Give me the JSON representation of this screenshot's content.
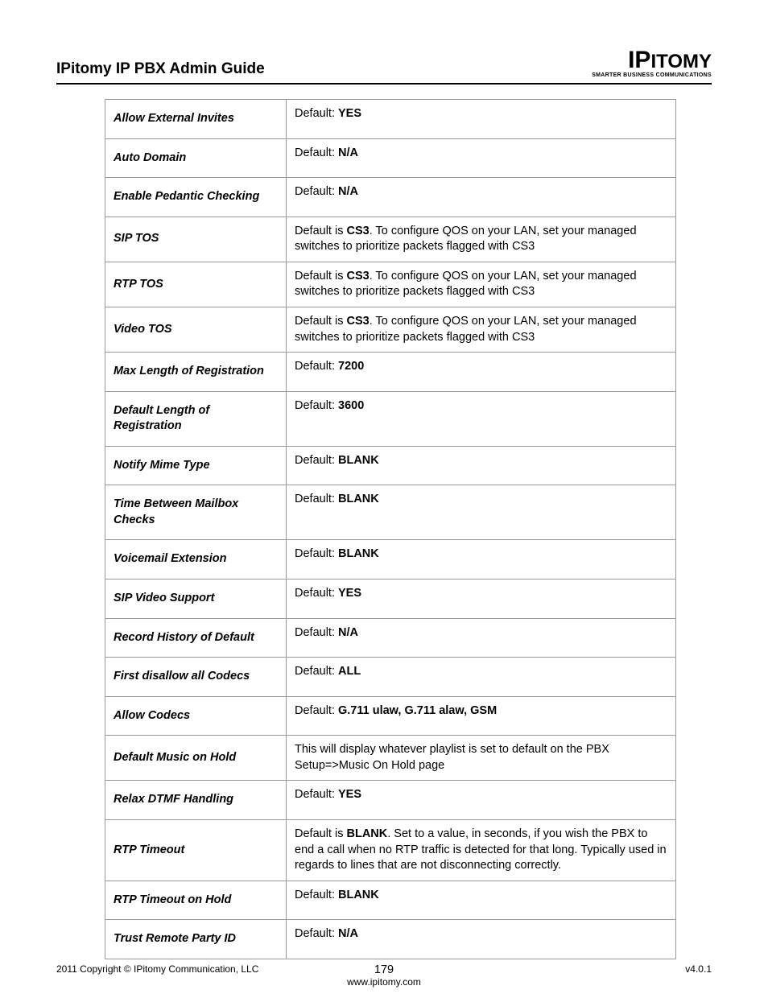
{
  "header": {
    "title": "IPitomy IP PBX Admin Guide",
    "logo_brand_ip": "IP",
    "logo_brand_rest": "ITOMY",
    "logo_tagline": "SMARTER BUSINESS COMMUNICATIONS"
  },
  "rows": [
    {
      "label": "Allow External Invites",
      "pre": "Default: ",
      "bold": "YES",
      "post": ""
    },
    {
      "label": "Auto Domain",
      "pre": "Default: ",
      "bold": "N/A",
      "post": ""
    },
    {
      "label": "Enable Pedantic Checking",
      "pre": "Default: ",
      "bold": "N/A",
      "post": ""
    },
    {
      "label": "SIP TOS",
      "pre": "Default is ",
      "bold": "CS3",
      "post": ".  To configure QOS on your LAN, set your managed switches to prioritize packets flagged with CS3"
    },
    {
      "label": "RTP TOS",
      "pre": "Default is ",
      "bold": "CS3",
      "post": ".  To configure QOS on your LAN, set your managed switches to prioritize packets flagged with CS3"
    },
    {
      "label": "Video TOS",
      "pre": "Default is ",
      "bold": "CS3",
      "post": ".  To configure QOS on your LAN, set your managed switches to prioritize packets flagged with CS3"
    },
    {
      "label": "Max Length of Registration",
      "pre": "Default: ",
      "bold": "7200",
      "post": ""
    },
    {
      "label": "Default Length of Registration",
      "pre": "Default: ",
      "bold": "3600",
      "post": ""
    },
    {
      "label": "Notify Mime Type",
      "pre": "Default: ",
      "bold": "BLANK",
      "post": ""
    },
    {
      "label": "Time Between Mailbox Checks",
      "pre": "Default: ",
      "bold": "BLANK",
      "post": ""
    },
    {
      "label": "Voicemail Extension",
      "pre": "Default: ",
      "bold": "BLANK",
      "post": ""
    },
    {
      "label": "SIP Video Support",
      "pre": "Default: ",
      "bold": "YES",
      "post": ""
    },
    {
      "label": "Record History of Default",
      "pre": "Default: ",
      "bold": "N/A",
      "post": ""
    },
    {
      "label": "First disallow all Codecs",
      "pre": "Default: ",
      "bold": "ALL",
      "post": ""
    },
    {
      "label": "Allow Codecs",
      "pre": "Default: ",
      "bold": "G.711 ulaw, G.711 alaw, GSM",
      "post": ""
    },
    {
      "label": "Default Music on Hold",
      "pre": "This will display whatever playlist is set to default on the PBX Setup=>Music On Hold page",
      "bold": "",
      "post": ""
    },
    {
      "label": "Relax DTMF Handling",
      "pre": "Default: ",
      "bold": "YES",
      "post": ""
    },
    {
      "label": "RTP Timeout",
      "pre": "Default is ",
      "bold": "BLANK",
      "post": ".  Set to a value, in seconds, if you wish the PBX to end a call when no RTP traffic is detected for that long.  Typically used in regards to lines that are not disconnecting correctly."
    },
    {
      "label": "RTP Timeout on Hold",
      "pre": "Default: ",
      "bold": "BLANK",
      "post": ""
    },
    {
      "label": "Trust Remote Party ID",
      "pre": "Default: ",
      "bold": "N/A",
      "post": ""
    }
  ],
  "footer": {
    "copyright": "2011 Copyright © IPitomy Communication, LLC",
    "page": "179",
    "url": "www.ipitomy.com",
    "version": "v4.0.1"
  }
}
